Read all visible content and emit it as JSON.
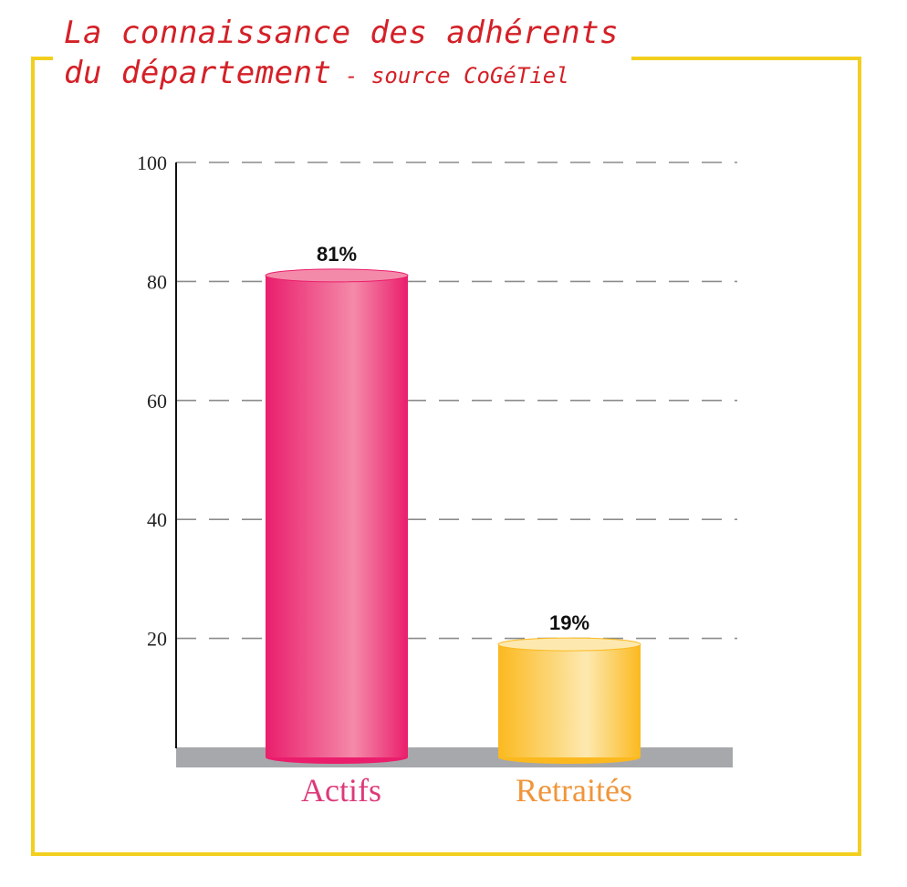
{
  "title": {
    "line1": "La connaissance des adhérents",
    "line2": "du département",
    "source": " - source CoGéTiel"
  },
  "chart_data": {
    "type": "bar",
    "categories": [
      "Actifs",
      "Retraités"
    ],
    "values": [
      81,
      19
    ],
    "value_labels": [
      "81%",
      "19%"
    ],
    "yticks": [
      20,
      40,
      60,
      80,
      100
    ],
    "ylim": [
      0,
      100
    ],
    "grid": true,
    "colors": {
      "Actifs": {
        "edge": "#ea1e6c",
        "mid": "#f48aa9",
        "label": "#dd3a7a"
      },
      "Retraités": {
        "edge": "#fbb91f",
        "mid": "#fde9b0",
        "label": "#f0953a"
      }
    }
  }
}
